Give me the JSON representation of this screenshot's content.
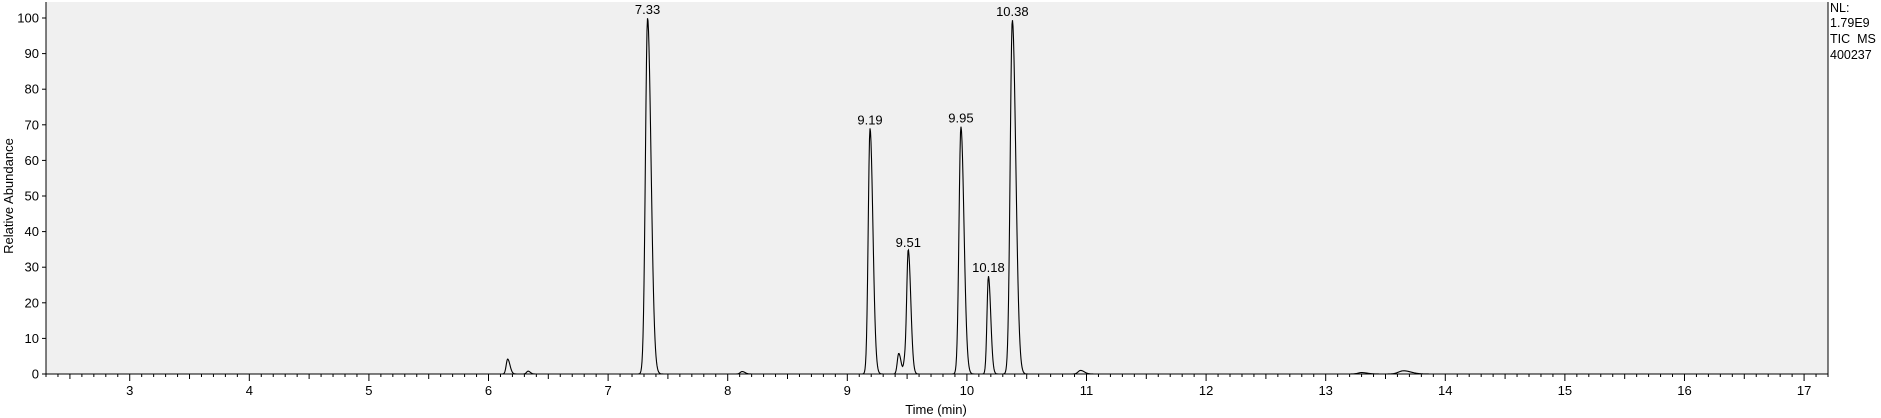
{
  "chart_data": {
    "type": "line",
    "title": "",
    "xlabel": "Time (min)",
    "ylabel": "Relative Abundance",
    "xlim": [
      2.3,
      17.2
    ],
    "ylim": [
      0,
      100
    ],
    "x_ticks": [
      3,
      4,
      5,
      6,
      7,
      8,
      9,
      10,
      11,
      12,
      13,
      14,
      15,
      16,
      17
    ],
    "y_ticks": [
      0,
      10,
      20,
      30,
      40,
      50,
      60,
      70,
      80,
      90,
      100
    ],
    "grid": false,
    "info": {
      "nl_label": "NL:",
      "nl_value": "1.79E9",
      "trace": "TIC  MS",
      "sample": "400237"
    },
    "peaks": [
      {
        "rt": 6.16,
        "height": 4.2,
        "width": 0.012
      },
      {
        "rt": 6.33,
        "height": 0.8,
        "width": 0.012
      },
      {
        "rt": 7.33,
        "height": 100,
        "width": 0.018,
        "label": "7.33"
      },
      {
        "rt": 8.12,
        "height": 0.7,
        "width": 0.015
      },
      {
        "rt": 9.19,
        "height": 69,
        "width": 0.015,
        "label": "9.19"
      },
      {
        "rt": 9.43,
        "height": 5.8,
        "width": 0.012
      },
      {
        "rt": 9.48,
        "height": 3.2,
        "width": 0.01
      },
      {
        "rt": 9.51,
        "height": 34.5,
        "width": 0.013,
        "label": "9.51"
      },
      {
        "rt": 9.95,
        "height": 69.5,
        "width": 0.016,
        "label": "9.95"
      },
      {
        "rt": 10.18,
        "height": 27.5,
        "width": 0.012,
        "label": "10.18"
      },
      {
        "rt": 10.38,
        "height": 99.5,
        "width": 0.018,
        "label": "10.38"
      },
      {
        "rt": 10.95,
        "height": 1.0,
        "width": 0.02
      },
      {
        "rt": 13.3,
        "height": 0.4,
        "width": 0.03
      },
      {
        "rt": 13.65,
        "height": 0.9,
        "width": 0.04
      }
    ]
  }
}
